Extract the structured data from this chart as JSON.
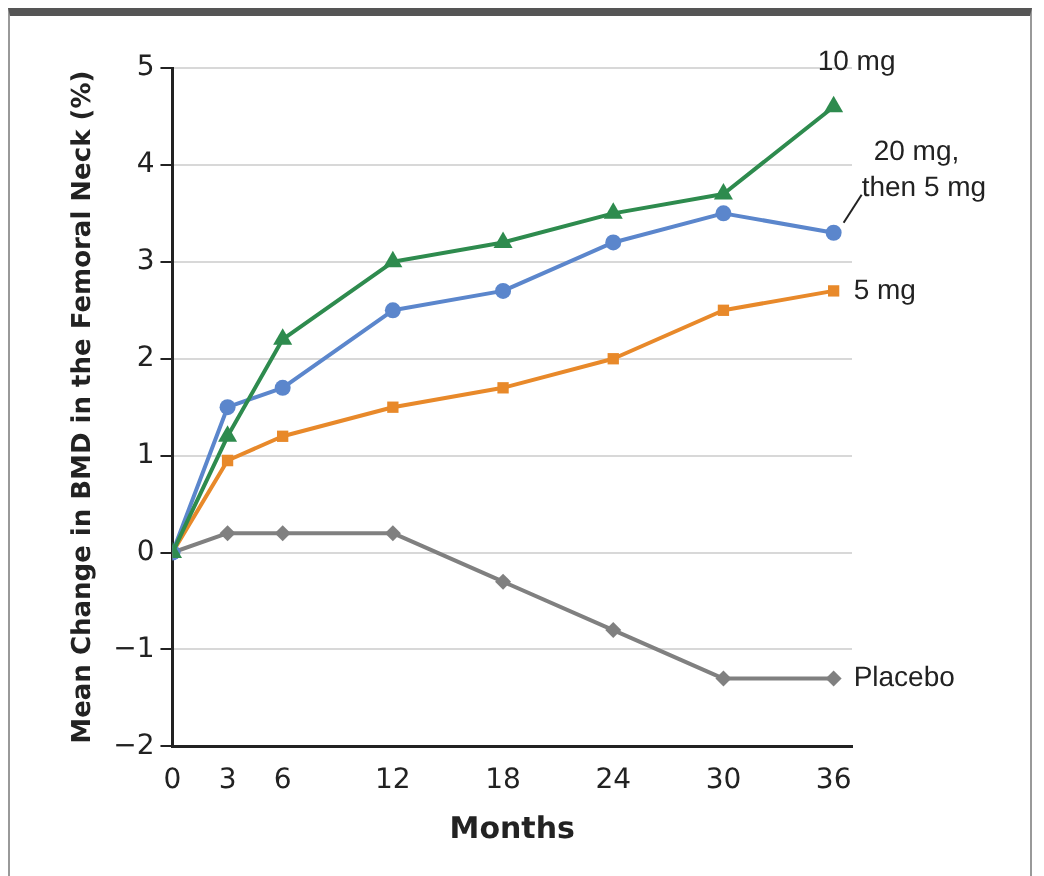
{
  "chart_data": {
    "type": "line",
    "xlabel": "Months",
    "ylabel": "Mean Change in BMD in the Femoral Neck (%)",
    "x": [
      0,
      3,
      6,
      12,
      18,
      24,
      30,
      36
    ],
    "xlim": [
      0,
      37
    ],
    "xticks": [
      0,
      3,
      6,
      12,
      18,
      24,
      30,
      36
    ],
    "ylim": [
      -2,
      5
    ],
    "yticks": [
      -2,
      -1,
      0,
      1,
      2,
      3,
      4,
      5
    ],
    "grid": "y",
    "legend": false,
    "series": [
      {
        "name": "10 mg",
        "color": "#2e8b4e",
        "marker": "triangle",
        "values": [
          0,
          1.2,
          2.2,
          3.0,
          3.2,
          3.5,
          3.7,
          4.6
        ]
      },
      {
        "name": "20 mg, then 5 mg",
        "color": "#5b86cc",
        "marker": "circle",
        "values": [
          0,
          1.5,
          1.7,
          2.5,
          2.7,
          3.2,
          3.5,
          3.3
        ]
      },
      {
        "name": "5 mg",
        "color": "#e8892a",
        "marker": "square",
        "values": [
          0,
          0.95,
          1.2,
          1.5,
          1.7,
          2.0,
          2.5,
          2.7
        ]
      },
      {
        "name": "Placebo",
        "color": "#808080",
        "marker": "diamond",
        "values": [
          0,
          0.2,
          0.2,
          0.2,
          -0.3,
          -0.8,
          -1.3,
          -1.3
        ]
      }
    ]
  }
}
